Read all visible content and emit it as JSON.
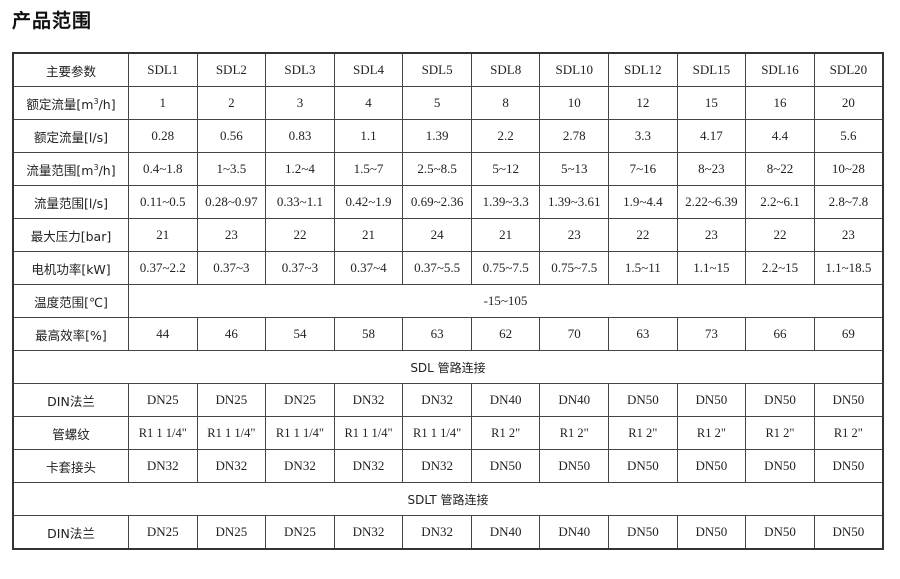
{
  "title": "产品范围",
  "header": {
    "label": "主要参数",
    "models": [
      "SDL1",
      "SDL2",
      "SDL3",
      "SDL4",
      "SDL5",
      "SDL8",
      "SDL10",
      "SDL12",
      "SDL15",
      "SDL16",
      "SDL20"
    ]
  },
  "rows": [
    {
      "label": "额定流量[m³/h]",
      "values": [
        "1",
        "2",
        "3",
        "4",
        "5",
        "8",
        "10",
        "12",
        "15",
        "16",
        "20"
      ]
    },
    {
      "label": "额定流量[l/s]",
      "values": [
        "0.28",
        "0.56",
        "0.83",
        "1.1",
        "1.39",
        "2.2",
        "2.78",
        "3.3",
        "4.17",
        "4.4",
        "5.6"
      ]
    },
    {
      "label": "流量范围[m³/h]",
      "values": [
        "0.4~1.8",
        "1~3.5",
        "1.2~4",
        "1.5~7",
        "2.5~8.5",
        "5~12",
        "5~13",
        "7~16",
        "8~23",
        "8~22",
        "10~28"
      ]
    },
    {
      "label": "流量范围[l/s]",
      "values": [
        "0.11~0.5",
        "0.28~0.97",
        "0.33~1.1",
        "0.42~1.9",
        "0.69~2.36",
        "1.39~3.3",
        "1.39~3.61",
        "1.9~4.4",
        "2.22~6.39",
        "2.2~6.1",
        "2.8~7.8"
      ]
    },
    {
      "label": "最大压力[bar]",
      "values": [
        "21",
        "23",
        "22",
        "21",
        "24",
        "21",
        "23",
        "22",
        "23",
        "22",
        "23"
      ]
    },
    {
      "label": "电机功率[kW]",
      "values": [
        "0.37~2.2",
        "0.37~3",
        "0.37~3",
        "0.37~4",
        "0.37~5.5",
        "0.75~7.5",
        "0.75~7.5",
        "1.5~11",
        "1.1~15",
        "2.2~15",
        "1.1~18.5"
      ]
    },
    {
      "label": "温度范围[℃]",
      "span": "-15~105"
    },
    {
      "label": "最高效率[%]",
      "values": [
        "44",
        "46",
        "54",
        "58",
        "63",
        "62",
        "70",
        "63",
        "73",
        "66",
        "69"
      ]
    },
    {
      "section": "SDL 管路连接"
    },
    {
      "label": "DIN法兰",
      "values": [
        "DN25",
        "DN25",
        "DN25",
        "DN32",
        "DN32",
        "DN40",
        "DN40",
        "DN50",
        "DN50",
        "DN50",
        "DN50"
      ]
    },
    {
      "label": "管螺纹",
      "threads": [
        "R1 1 1/4\"",
        "R1 1 1/4\"",
        "R1 1 1/4\"",
        "R1 1 1/4\"",
        "R1 1 1/4\"",
        "R1 2\"",
        "R1 2\"",
        "R1 2\"",
        "R1 2\"",
        "R1 2\"",
        "R1 2\""
      ]
    },
    {
      "label": "卡套接头",
      "values": [
        "DN32",
        "DN32",
        "DN32",
        "DN32",
        "DN32",
        "DN50",
        "DN50",
        "DN50",
        "DN50",
        "DN50",
        "DN50"
      ]
    },
    {
      "section": "SDLT 管路连接"
    },
    {
      "label": "DIN法兰",
      "values": [
        "DN25",
        "DN25",
        "DN25",
        "DN32",
        "DN32",
        "DN40",
        "DN40",
        "DN50",
        "DN50",
        "DN50",
        "DN50"
      ]
    }
  ]
}
